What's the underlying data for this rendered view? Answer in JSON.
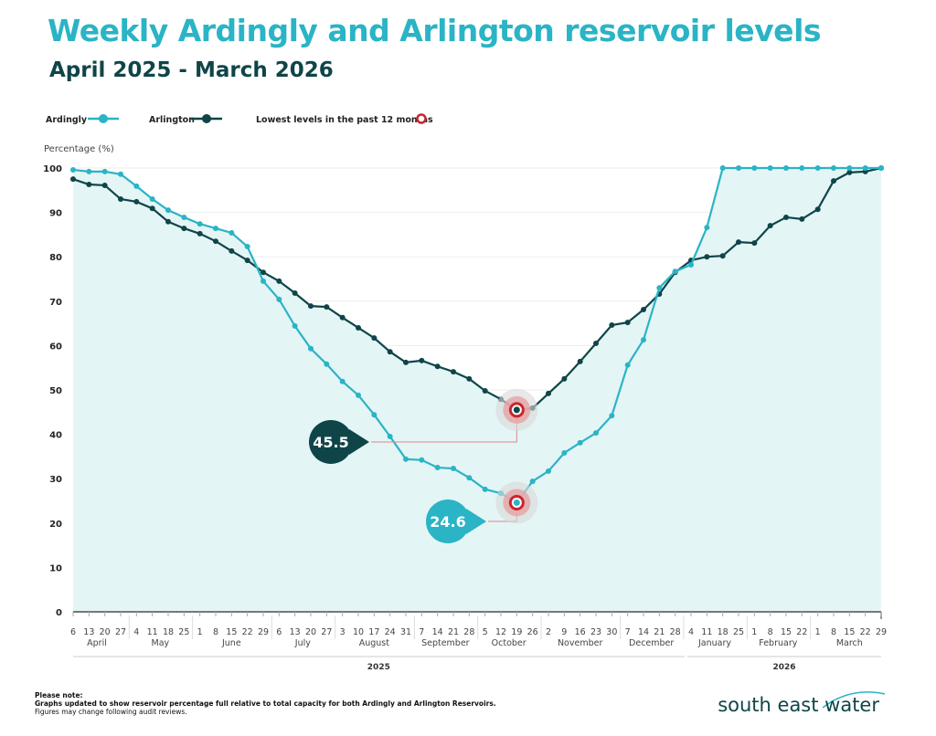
{
  "title": "Weekly Ardingly and Arlington reservoir levels",
  "subtitle": "April 2025 - March 2026",
  "notes": [
    "Please note:",
    "Graphs updated to show reservoir percentage full relative to total capacity for both Ardingly and Arlington Reservoirs.",
    "Figures may change following audit reviews."
  ],
  "logo_text": "south east water",
  "chart_data": {
    "type": "line",
    "ylabel": "Percentage (%)",
    "ylim": [
      0,
      100
    ],
    "yticks": [
      0,
      10,
      20,
      30,
      40,
      50,
      60,
      70,
      80,
      90,
      100
    ],
    "grid": true,
    "legend_position": "top-left",
    "legend": {
      "lowest_label": "Lowest levels in the past 12 months"
    },
    "x_day_labels": [
      "6",
      "13",
      "20",
      "27",
      "4",
      "11",
      "18",
      "25",
      "1",
      "8",
      "15",
      "22",
      "29",
      "6",
      "13",
      "20",
      "27",
      "3",
      "10",
      "17",
      "24",
      "31",
      "7",
      "14",
      "21",
      "28",
      "5",
      "12",
      "19",
      "26",
      "2",
      "9",
      "16",
      "23",
      "30",
      "7",
      "14",
      "21",
      "28",
      "4",
      "11",
      "18",
      "25",
      "1",
      "8",
      "15",
      "22",
      "1",
      "8",
      "15",
      "22",
      "29"
    ],
    "months": [
      {
        "name": "April",
        "start": 0,
        "count": 4
      },
      {
        "name": "May",
        "start": 4,
        "count": 4
      },
      {
        "name": "June",
        "start": 8,
        "count": 5
      },
      {
        "name": "July",
        "start": 13,
        "count": 4
      },
      {
        "name": "August",
        "start": 17,
        "count": 5
      },
      {
        "name": "September",
        "start": 22,
        "count": 4
      },
      {
        "name": "October",
        "start": 26,
        "count": 4
      },
      {
        "name": "November",
        "start": 30,
        "count": 5
      },
      {
        "name": "December",
        "start": 35,
        "count": 4
      },
      {
        "name": "January",
        "start": 39,
        "count": 4
      },
      {
        "name": "February",
        "start": 43,
        "count": 4
      },
      {
        "name": "March",
        "start": 47,
        "count": 5
      }
    ],
    "years": [
      {
        "name": "2025",
        "start": 0,
        "end": 38
      },
      {
        "name": "2026",
        "start": 39,
        "end": 51
      }
    ],
    "series": [
      {
        "name": "Ardingly",
        "color": "#2ab4c5",
        "values": [
          99.6,
          99.2,
          99.2,
          98.6,
          95.9,
          93.0,
          90.5,
          88.9,
          87.4,
          86.4,
          85.4,
          82.3,
          74.5,
          70.4,
          64.4,
          59.3,
          55.8,
          51.9,
          48.8,
          44.4,
          39.5,
          34.4,
          34.2,
          32.5,
          32.3,
          30.2,
          27.6,
          26.7,
          24.6,
          29.4,
          31.7,
          35.8,
          38.1,
          40.3,
          44.2,
          55.6,
          61.3,
          73.0,
          76.7,
          78.2,
          86.6,
          100,
          100,
          100,
          100,
          100,
          100,
          100,
          100,
          100,
          100,
          100
        ]
      },
      {
        "name": "Arlington",
        "color": "#0f4548",
        "values": [
          97.5,
          96.3,
          96.1,
          93.0,
          92.4,
          90.9,
          87.9,
          86.4,
          85.2,
          83.5,
          81.3,
          79.2,
          76.5,
          74.5,
          71.8,
          68.9,
          68.7,
          66.3,
          64.0,
          61.7,
          58.6,
          56.2,
          56.6,
          55.3,
          54.1,
          52.5,
          49.8,
          47.9,
          45.5,
          45.9,
          49.2,
          52.5,
          56.4,
          60.5,
          64.6,
          65.2,
          68.1,
          71.6,
          76.5,
          79.2,
          80.0,
          80.2,
          83.3,
          83.1,
          87.0,
          88.9,
          88.5,
          90.7,
          97.1,
          99.0,
          99.2,
          100
        ]
      }
    ],
    "annotations": [
      {
        "series": "Arlington",
        "index": 28,
        "label": "45.5"
      },
      {
        "series": "Ardingly",
        "index": 28,
        "label": "24.6"
      }
    ],
    "fill_color": "#e3f4f5",
    "lowest_marker_color": "#c8262c"
  }
}
